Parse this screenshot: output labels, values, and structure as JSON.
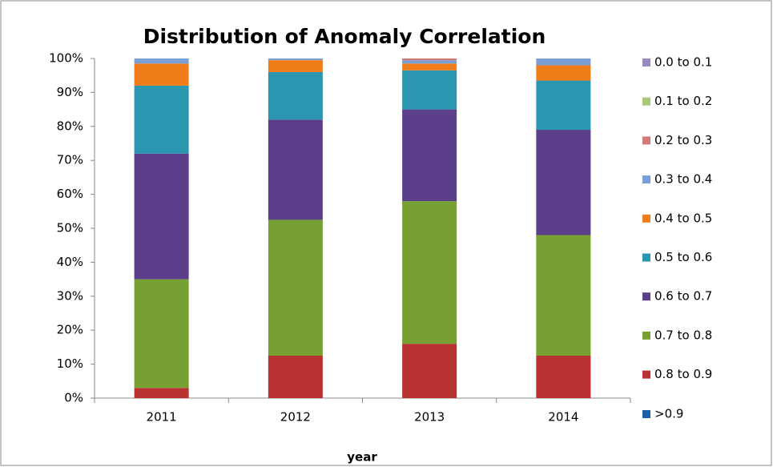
{
  "chart_data": {
    "type": "stacked_bar",
    "title": "Distribution of Anomaly Correlation",
    "x_label": "year",
    "categories": [
      "2011",
      "2012",
      "2013",
      "2014"
    ],
    "series": [
      {
        "name": ">0.9",
        "color": "#1f5fa8",
        "values": [
          0,
          0,
          0,
          0
        ]
      },
      {
        "name": "0.8 to 0.9",
        "color": "#b83232",
        "values": [
          3,
          12.5,
          16,
          12.5
        ]
      },
      {
        "name": "0.7 to 0.8",
        "color": "#77a033",
        "values": [
          32,
          40,
          42,
          35.5
        ]
      },
      {
        "name": "0.6 to 0.7",
        "color": "#5b3f8a",
        "values": [
          37,
          29.5,
          27,
          31
        ]
      },
      {
        "name": "0.5 to 0.6",
        "color": "#2a96b0",
        "values": [
          20,
          14,
          11.5,
          14.5
        ]
      },
      {
        "name": "0.4 to 0.5",
        "color": "#f07c1a",
        "values": [
          6.5,
          3.5,
          2,
          4.5
        ]
      },
      {
        "name": "0.3 to 0.4",
        "color": "#7a9fd4",
        "values": [
          1.5,
          0.5,
          1,
          2
        ]
      },
      {
        "name": "0.2 to 0.3",
        "color": "#d47a78",
        "values": [
          0,
          0,
          0.5,
          0
        ]
      },
      {
        "name": "0.1 to 0.2",
        "color": "#a8c878",
        "values": [
          0,
          0,
          0,
          0
        ]
      },
      {
        "name": "0.0 to 0.1",
        "color": "#9a88c0",
        "values": [
          0,
          0,
          0,
          0
        ]
      }
    ],
    "ylim": [
      0,
      100
    ],
    "yticks": [
      {
        "value": 0,
        "label": "0%"
      },
      {
        "value": 10,
        "label": "10%"
      },
      {
        "value": 20,
        "label": "20%"
      },
      {
        "value": 30,
        "label": "30%"
      },
      {
        "value": 40,
        "label": "40%"
      },
      {
        "value": 50,
        "label": "50%"
      },
      {
        "value": 60,
        "label": "60%"
      },
      {
        "value": 70,
        "label": "70%"
      },
      {
        "value": 80,
        "label": "80%"
      },
      {
        "value": 90,
        "label": "90%"
      },
      {
        "value": 100,
        "label": "100%"
      }
    ],
    "legend": "right"
  }
}
